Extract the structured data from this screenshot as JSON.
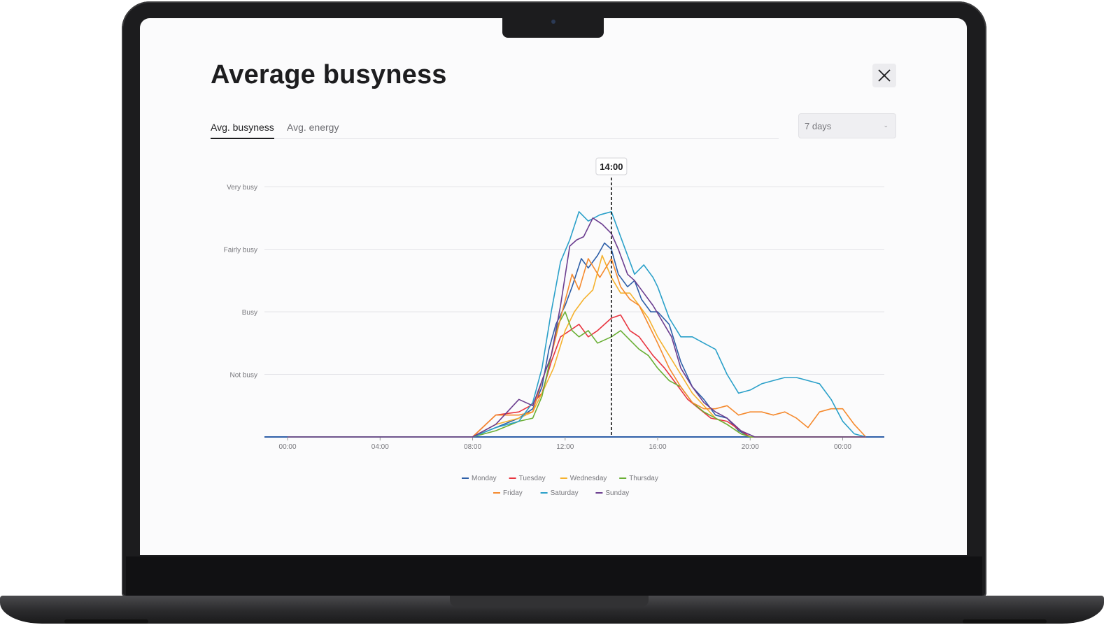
{
  "page": {
    "title": "Average busyness"
  },
  "tabs": [
    {
      "label": "Avg. busyness",
      "active": true
    },
    {
      "label": "Avg. energy",
      "active": false
    }
  ],
  "period_select": {
    "value": "7 days"
  },
  "icons": {
    "close": "close-icon",
    "chevron": "chevron-down-icon"
  },
  "chart_data": {
    "type": "line",
    "title": "",
    "xlabel": "",
    "ylabel": "",
    "x_tick_labels": [
      "00:00",
      "04:00",
      "08:00",
      "12:00",
      "16:00",
      "20:00",
      "00:00"
    ],
    "y_levels": [
      "Not busy",
      "Busy",
      "Fairly busy",
      "Very busy"
    ],
    "ylim": [
      0,
      4
    ],
    "xlim_hours": [
      -1,
      25.8
    ],
    "grid": true,
    "legend_position": "bottom",
    "tooltip": "14:00",
    "cursor_hour": 14,
    "series": [
      {
        "name": "Monday",
        "color": "#2e5fa8",
        "points": [
          [
            0,
            0
          ],
          [
            8,
            0
          ],
          [
            9,
            0.15
          ],
          [
            10,
            0.3
          ],
          [
            10.6,
            0.45
          ],
          [
            11,
            0.8
          ],
          [
            11.3,
            1.4
          ],
          [
            11.6,
            1.8
          ],
          [
            12,
            2.1
          ],
          [
            12.3,
            2.4
          ],
          [
            12.7,
            2.85
          ],
          [
            13,
            2.7
          ],
          [
            13.4,
            2.9
          ],
          [
            13.7,
            3.1
          ],
          [
            14,
            3.0
          ],
          [
            14.3,
            2.6
          ],
          [
            14.7,
            2.4
          ],
          [
            15,
            2.5
          ],
          [
            15.3,
            2.2
          ],
          [
            15.7,
            2.0
          ],
          [
            16,
            2.0
          ],
          [
            16.5,
            1.8
          ],
          [
            17,
            1.2
          ],
          [
            17.5,
            0.8
          ],
          [
            18,
            0.6
          ],
          [
            18.5,
            0.35
          ],
          [
            19,
            0.3
          ],
          [
            19.5,
            0.1
          ],
          [
            20,
            0
          ],
          [
            25,
            0
          ]
        ]
      },
      {
        "name": "Tuesday",
        "color": "#e8343f",
        "points": [
          [
            0,
            0
          ],
          [
            8,
            0
          ],
          [
            9,
            0.35
          ],
          [
            10,
            0.4
          ],
          [
            10.5,
            0.5
          ],
          [
            11,
            0.7
          ],
          [
            11.4,
            1.2
          ],
          [
            11.8,
            1.6
          ],
          [
            12.2,
            1.7
          ],
          [
            12.6,
            1.8
          ],
          [
            13,
            1.6
          ],
          [
            13.4,
            1.7
          ],
          [
            14,
            1.9
          ],
          [
            14.4,
            1.95
          ],
          [
            14.8,
            1.7
          ],
          [
            15.2,
            1.6
          ],
          [
            15.8,
            1.3
          ],
          [
            16.3,
            1.1
          ],
          [
            16.8,
            0.85
          ],
          [
            17.3,
            0.6
          ],
          [
            17.8,
            0.45
          ],
          [
            18.3,
            0.3
          ],
          [
            19,
            0.25
          ],
          [
            19.6,
            0.1
          ],
          [
            20,
            0
          ],
          [
            25,
            0
          ]
        ]
      },
      {
        "name": "Wednesday",
        "color": "#f5b22e",
        "points": [
          [
            0,
            0
          ],
          [
            8,
            0
          ],
          [
            9,
            0.2
          ],
          [
            10,
            0.3
          ],
          [
            10.6,
            0.4
          ],
          [
            11,
            0.7
          ],
          [
            11.5,
            1.1
          ],
          [
            12,
            1.7
          ],
          [
            12.4,
            2.0
          ],
          [
            12.8,
            2.2
          ],
          [
            13.2,
            2.35
          ],
          [
            13.6,
            2.9
          ],
          [
            14,
            2.55
          ],
          [
            14.4,
            2.3
          ],
          [
            14.8,
            2.3
          ],
          [
            15.2,
            2.1
          ],
          [
            15.6,
            1.9
          ],
          [
            16,
            1.6
          ],
          [
            16.5,
            1.3
          ],
          [
            17,
            1.0
          ],
          [
            17.5,
            0.7
          ],
          [
            18,
            0.5
          ],
          [
            18.5,
            0.3
          ],
          [
            19,
            0.2
          ],
          [
            19.6,
            0.05
          ],
          [
            20,
            0
          ],
          [
            25,
            0
          ]
        ]
      },
      {
        "name": "Thursday",
        "color": "#6aaf35",
        "points": [
          [
            0,
            0
          ],
          [
            8,
            0
          ],
          [
            9,
            0.1
          ],
          [
            10,
            0.25
          ],
          [
            10.6,
            0.3
          ],
          [
            11,
            0.65
          ],
          [
            11.4,
            1.3
          ],
          [
            11.7,
            1.8
          ],
          [
            12,
            2.0
          ],
          [
            12.3,
            1.7
          ],
          [
            12.6,
            1.6
          ],
          [
            13,
            1.7
          ],
          [
            13.4,
            1.5
          ],
          [
            14,
            1.6
          ],
          [
            14.4,
            1.7
          ],
          [
            14.8,
            1.55
          ],
          [
            15.2,
            1.4
          ],
          [
            15.6,
            1.3
          ],
          [
            16,
            1.1
          ],
          [
            16.5,
            0.9
          ],
          [
            17,
            0.8
          ],
          [
            17.5,
            0.55
          ],
          [
            18,
            0.4
          ],
          [
            18.5,
            0.3
          ],
          [
            19,
            0.2
          ],
          [
            19.6,
            0.05
          ],
          [
            20,
            0
          ],
          [
            25,
            0
          ]
        ]
      },
      {
        "name": "Friday",
        "color": "#f58a2e",
        "points": [
          [
            0,
            0
          ],
          [
            8,
            0
          ],
          [
            9,
            0.35
          ],
          [
            10,
            0.35
          ],
          [
            10.6,
            0.4
          ],
          [
            11,
            0.9
          ],
          [
            11.4,
            1.3
          ],
          [
            11.8,
            1.9
          ],
          [
            12.3,
            2.6
          ],
          [
            12.6,
            2.35
          ],
          [
            13,
            2.85
          ],
          [
            13.5,
            2.55
          ],
          [
            14,
            2.85
          ],
          [
            14.4,
            2.4
          ],
          [
            14.8,
            2.2
          ],
          [
            15.2,
            2.1
          ],
          [
            15.6,
            1.8
          ],
          [
            16,
            1.5
          ],
          [
            16.5,
            1.1
          ],
          [
            17,
            0.8
          ],
          [
            17.5,
            0.55
          ],
          [
            18,
            0.45
          ],
          [
            18.5,
            0.45
          ],
          [
            19,
            0.5
          ],
          [
            19.5,
            0.35
          ],
          [
            20,
            0.4
          ],
          [
            20.5,
            0.4
          ],
          [
            21,
            0.35
          ],
          [
            21.5,
            0.4
          ],
          [
            22,
            0.3
          ],
          [
            22.5,
            0.15
          ],
          [
            23,
            0.4
          ],
          [
            23.5,
            0.45
          ],
          [
            24,
            0.45
          ],
          [
            24.5,
            0.2
          ],
          [
            25,
            0
          ]
        ]
      },
      {
        "name": "Saturday",
        "color": "#2aa0c9",
        "points": [
          [
            0,
            0
          ],
          [
            8,
            0
          ],
          [
            9,
            0.15
          ],
          [
            10,
            0.25
          ],
          [
            10.6,
            0.55
          ],
          [
            11,
            1.1
          ],
          [
            11.4,
            2.0
          ],
          [
            11.8,
            2.8
          ],
          [
            12.2,
            3.15
          ],
          [
            12.6,
            3.6
          ],
          [
            13,
            3.45
          ],
          [
            13.5,
            3.55
          ],
          [
            14,
            3.6
          ],
          [
            14.3,
            3.3
          ],
          [
            14.7,
            2.9
          ],
          [
            15,
            2.6
          ],
          [
            15.4,
            2.75
          ],
          [
            15.8,
            2.55
          ],
          [
            16,
            2.4
          ],
          [
            16.5,
            1.9
          ],
          [
            17,
            1.6
          ],
          [
            17.5,
            1.6
          ],
          [
            18,
            1.5
          ],
          [
            18.5,
            1.4
          ],
          [
            19,
            1.0
          ],
          [
            19.5,
            0.7
          ],
          [
            20,
            0.75
          ],
          [
            20.5,
            0.85
          ],
          [
            21,
            0.9
          ],
          [
            21.5,
            0.95
          ],
          [
            22,
            0.95
          ],
          [
            22.5,
            0.9
          ],
          [
            23,
            0.85
          ],
          [
            23.5,
            0.6
          ],
          [
            24,
            0.25
          ],
          [
            24.5,
            0.05
          ],
          [
            25,
            0
          ]
        ]
      },
      {
        "name": "Sunday",
        "color": "#6b3d8f",
        "points": [
          [
            0,
            0
          ],
          [
            8,
            0
          ],
          [
            9,
            0.2
          ],
          [
            10,
            0.6
          ],
          [
            10.6,
            0.5
          ],
          [
            11,
            0.9
          ],
          [
            11.4,
            1.3
          ],
          [
            11.8,
            2.1
          ],
          [
            12.2,
            3.05
          ],
          [
            12.5,
            3.15
          ],
          [
            12.8,
            3.2
          ],
          [
            13.2,
            3.5
          ],
          [
            13.6,
            3.4
          ],
          [
            14,
            3.25
          ],
          [
            14.3,
            3.0
          ],
          [
            14.7,
            2.6
          ],
          [
            15,
            2.5
          ],
          [
            15.4,
            2.3
          ],
          [
            15.8,
            2.1
          ],
          [
            16.2,
            1.85
          ],
          [
            16.6,
            1.6
          ],
          [
            17,
            1.1
          ],
          [
            17.5,
            0.8
          ],
          [
            18,
            0.55
          ],
          [
            18.5,
            0.4
          ],
          [
            19,
            0.3
          ],
          [
            19.6,
            0.1
          ],
          [
            20.2,
            0
          ],
          [
            25,
            0
          ]
        ]
      }
    ]
  }
}
